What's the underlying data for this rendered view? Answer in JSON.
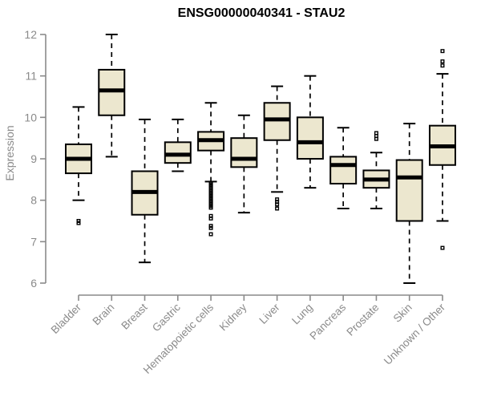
{
  "window": {
    "title": "ENSG00000040341 - STAU2"
  },
  "colors": {
    "background": "#ffffff",
    "axis": "#8a8a8a",
    "tick_label": "#8a8a8a",
    "box_fill": "#ece7cf",
    "box_border": "#000000",
    "median": "#000000",
    "whisker": "#000000",
    "outlier": "#000000",
    "title": "#000000"
  },
  "chart_data": {
    "type": "boxplot",
    "title": "ENSG00000040341 - STAU2",
    "xlabel": "",
    "ylabel": "Expression",
    "ylim": [
      6,
      12
    ],
    "yticks": [
      6,
      7,
      8,
      9,
      10,
      11,
      12
    ],
    "grid": false,
    "legend": false,
    "categories": [
      "Bladder",
      "Brain",
      "Breast",
      "Gastric",
      "Hematopoietic cells",
      "Kidney",
      "Liver",
      "Lung",
      "Pancreas",
      "Prostate",
      "Skin",
      "Unknown / Other"
    ],
    "series": [
      {
        "name": "Bladder",
        "low": 8.0,
        "q1": 8.65,
        "median": 9.0,
        "q3": 9.35,
        "high": 10.25,
        "outliers": [
          7.5,
          7.45
        ]
      },
      {
        "name": "Brain",
        "low": 9.05,
        "q1": 10.05,
        "median": 10.65,
        "q3": 11.15,
        "high": 12.0,
        "outliers": []
      },
      {
        "name": "Breast",
        "low": 6.5,
        "q1": 7.65,
        "median": 8.2,
        "q3": 8.7,
        "high": 9.95,
        "outliers": []
      },
      {
        "name": "Gastric",
        "low": 8.7,
        "q1": 8.9,
        "median": 9.1,
        "q3": 9.4,
        "high": 9.95,
        "outliers": []
      },
      {
        "name": "Hematopoietic cells",
        "low": 8.45,
        "q1": 9.2,
        "median": 9.45,
        "q3": 9.65,
        "high": 10.35,
        "outliers": [
          8.42,
          8.38,
          8.34,
          8.3,
          8.26,
          8.22,
          8.18,
          8.14,
          8.1,
          8.06,
          8.02,
          7.98,
          7.94,
          7.9,
          7.86,
          7.82,
          7.62,
          7.56,
          7.38,
          7.33,
          7.18
        ]
      },
      {
        "name": "Kidney",
        "low": 7.7,
        "q1": 8.8,
        "median": 9.0,
        "q3": 9.5,
        "high": 10.05,
        "outliers": []
      },
      {
        "name": "Liver",
        "low": 8.2,
        "q1": 9.45,
        "median": 9.95,
        "q3": 10.35,
        "high": 10.75,
        "outliers": [
          8.02,
          7.96,
          7.9,
          7.8
        ]
      },
      {
        "name": "Lung",
        "low": 8.3,
        "q1": 9.0,
        "median": 9.4,
        "q3": 10.0,
        "high": 11.0,
        "outliers": []
      },
      {
        "name": "Pancreas",
        "low": 7.8,
        "q1": 8.4,
        "median": 8.85,
        "q3": 9.05,
        "high": 9.75,
        "outliers": []
      },
      {
        "name": "Prostate",
        "low": 7.8,
        "q1": 8.3,
        "median": 8.5,
        "q3": 8.72,
        "high": 9.15,
        "outliers": [
          9.62,
          9.55,
          9.48
        ]
      },
      {
        "name": "Skin",
        "low": 6.0,
        "q1": 7.5,
        "median": 8.55,
        "q3": 8.97,
        "high": 9.85,
        "outliers": []
      },
      {
        "name": "Unknown / Other",
        "low": 7.5,
        "q1": 8.85,
        "median": 9.3,
        "q3": 9.8,
        "high": 11.05,
        "outliers": [
          11.6,
          11.35,
          11.25,
          6.85
        ]
      }
    ]
  }
}
